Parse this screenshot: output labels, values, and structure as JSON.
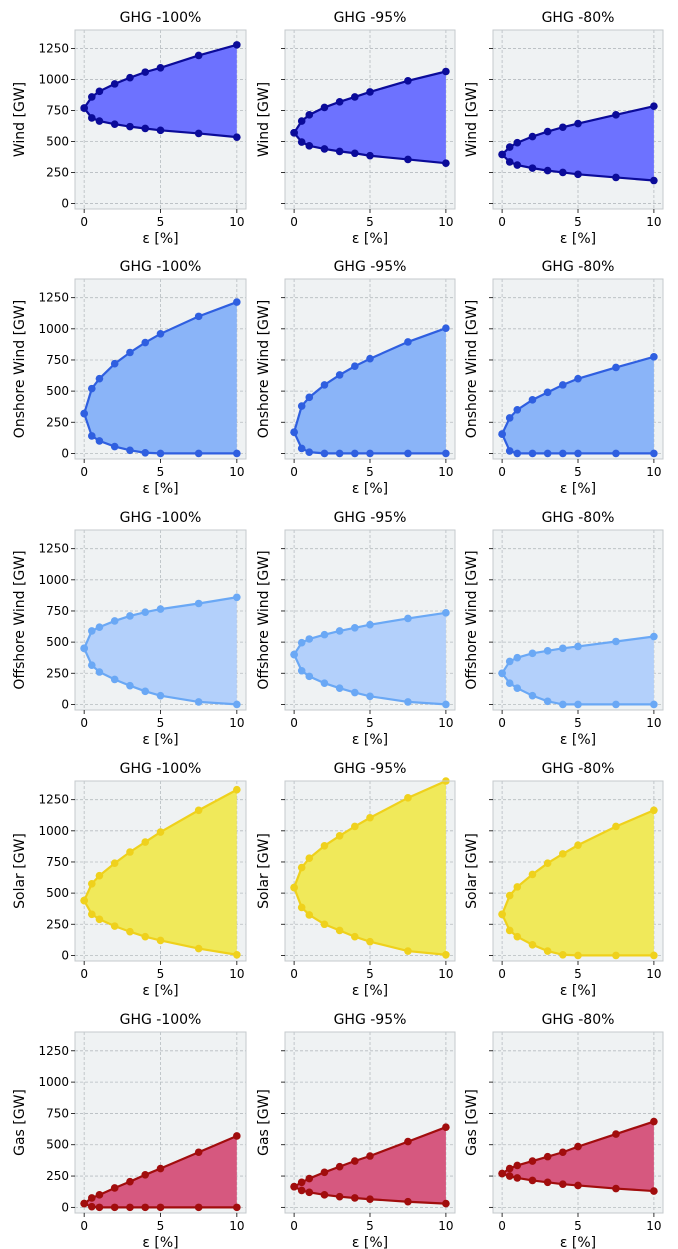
{
  "figure": {
    "colors": {
      "panel_bg": "#eff2f3",
      "grid": "#b6bcc0",
      "spine": "#c4cacd"
    }
  },
  "chart_data": [
    {
      "type": "area",
      "title": "GHG -100%",
      "ylabel": "Wind [GW]",
      "xlabel": "ε [%]",
      "xlim": [
        -0.6,
        10.6
      ],
      "ylim": [
        -45,
        1400
      ],
      "xticks": [
        0,
        5,
        10
      ],
      "yticks": [
        0,
        250,
        500,
        750,
        1000,
        1250
      ],
      "show_ytick_labels": true,
      "grid": true,
      "line_color": "#0b0b99",
      "fill_color": "#6d72ff",
      "x": [
        0,
        0.5,
        1,
        2,
        3,
        4,
        5,
        7.5,
        10
      ],
      "upper": [
        770,
        860,
        905,
        965,
        1015,
        1060,
        1095,
        1195,
        1280
      ],
      "lower": [
        770,
        690,
        665,
        640,
        620,
        605,
        590,
        565,
        535
      ]
    },
    {
      "type": "area",
      "title": "GHG -95%",
      "ylabel": "Wind [GW]",
      "xlabel": "ε [%]",
      "xlim": [
        -0.6,
        10.6
      ],
      "ylim": [
        -45,
        1400
      ],
      "xticks": [
        0,
        5,
        10
      ],
      "yticks": [
        0,
        250,
        500,
        750,
        1000,
        1250
      ],
      "show_ytick_labels": false,
      "grid": true,
      "line_color": "#0b0b99",
      "fill_color": "#6d72ff",
      "x": [
        0,
        0.5,
        1,
        2,
        3,
        4,
        5,
        7.5,
        10
      ],
      "upper": [
        570,
        665,
        715,
        775,
        820,
        860,
        900,
        990,
        1065
      ],
      "lower": [
        570,
        495,
        465,
        440,
        420,
        405,
        385,
        355,
        325
      ]
    },
    {
      "type": "area",
      "title": "GHG -80%",
      "ylabel": "Wind [GW]",
      "xlabel": "ε [%]",
      "xlim": [
        -0.6,
        10.6
      ],
      "ylim": [
        -45,
        1400
      ],
      "xticks": [
        0,
        5,
        10
      ],
      "yticks": [
        0,
        250,
        500,
        750,
        1000,
        1250
      ],
      "show_ytick_labels": false,
      "grid": true,
      "line_color": "#0b0b99",
      "fill_color": "#6d72ff",
      "x": [
        0,
        0.5,
        1,
        2,
        3,
        4,
        5,
        7.5,
        10
      ],
      "upper": [
        395,
        455,
        490,
        540,
        580,
        615,
        645,
        715,
        785
      ],
      "lower": [
        395,
        335,
        310,
        285,
        265,
        250,
        235,
        210,
        185
      ]
    },
    {
      "type": "area",
      "title": "GHG -100%",
      "ylabel": "Onshore Wind [GW]",
      "xlabel": "ε [%]",
      "xlim": [
        -0.6,
        10.6
      ],
      "ylim": [
        -45,
        1400
      ],
      "xticks": [
        0,
        5,
        10
      ],
      "yticks": [
        0,
        250,
        500,
        750,
        1000,
        1250
      ],
      "show_ytick_labels": true,
      "grid": true,
      "line_color": "#2f5fe0",
      "fill_color": "#8ab4f8",
      "x": [
        0,
        0.5,
        1,
        2,
        3,
        4,
        5,
        7.5,
        10
      ],
      "upper": [
        320,
        520,
        600,
        720,
        810,
        890,
        960,
        1100,
        1215
      ],
      "lower": [
        320,
        140,
        100,
        55,
        25,
        5,
        0,
        0,
        0
      ]
    },
    {
      "type": "area",
      "title": "GHG -95%",
      "ylabel": "Onshore Wind [GW]",
      "xlabel": "ε [%]",
      "xlim": [
        -0.6,
        10.6
      ],
      "ylim": [
        -45,
        1400
      ],
      "xticks": [
        0,
        5,
        10
      ],
      "yticks": [
        0,
        250,
        500,
        750,
        1000,
        1250
      ],
      "show_ytick_labels": false,
      "grid": true,
      "line_color": "#2f5fe0",
      "fill_color": "#8ab4f8",
      "x": [
        0,
        0.5,
        1,
        2,
        3,
        4,
        5,
        7.5,
        10
      ],
      "upper": [
        170,
        380,
        450,
        550,
        630,
        700,
        760,
        895,
        1005
      ],
      "lower": [
        170,
        40,
        10,
        0,
        0,
        0,
        0,
        0,
        0
      ]
    },
    {
      "type": "area",
      "title": "GHG -80%",
      "ylabel": "Onshore Wind [GW]",
      "xlabel": "ε [%]",
      "xlim": [
        -0.6,
        10.6
      ],
      "ylim": [
        -45,
        1400
      ],
      "xticks": [
        0,
        5,
        10
      ],
      "yticks": [
        0,
        250,
        500,
        750,
        1000,
        1250
      ],
      "show_ytick_labels": false,
      "grid": true,
      "line_color": "#2f5fe0",
      "fill_color": "#8ab4f8",
      "x": [
        0,
        0.5,
        1,
        2,
        3,
        4,
        5,
        7.5,
        10
      ],
      "upper": [
        155,
        285,
        350,
        430,
        490,
        550,
        600,
        690,
        775
      ],
      "lower": [
        155,
        20,
        0,
        0,
        0,
        0,
        0,
        0,
        0
      ]
    },
    {
      "type": "area",
      "title": "GHG -100%",
      "ylabel": "Offshore Wind [GW]",
      "xlabel": "ε [%]",
      "xlim": [
        -0.6,
        10.6
      ],
      "ylim": [
        -45,
        1400
      ],
      "xticks": [
        0,
        5,
        10
      ],
      "yticks": [
        0,
        250,
        500,
        750,
        1000,
        1250
      ],
      "show_ytick_labels": true,
      "grid": true,
      "line_color": "#6aa8f5",
      "fill_color": "#b3d0fb",
      "x": [
        0,
        0.5,
        1,
        2,
        3,
        4,
        5,
        7.5,
        10
      ],
      "upper": [
        450,
        590,
        620,
        670,
        710,
        740,
        765,
        810,
        860
      ],
      "lower": [
        450,
        315,
        260,
        200,
        150,
        105,
        70,
        20,
        0
      ]
    },
    {
      "type": "area",
      "title": "GHG -95%",
      "ylabel": "Offshore Wind [GW]",
      "xlabel": "ε [%]",
      "xlim": [
        -0.6,
        10.6
      ],
      "ylim": [
        -45,
        1400
      ],
      "xticks": [
        0,
        5,
        10
      ],
      "yticks": [
        0,
        250,
        500,
        750,
        1000,
        1250
      ],
      "show_ytick_labels": false,
      "grid": true,
      "line_color": "#6aa8f5",
      "fill_color": "#b3d0fb",
      "x": [
        0,
        0.5,
        1,
        2,
        3,
        4,
        5,
        7.5,
        10
      ],
      "upper": [
        400,
        495,
        525,
        560,
        590,
        615,
        640,
        690,
        735
      ],
      "lower": [
        400,
        270,
        225,
        170,
        130,
        95,
        65,
        20,
        0
      ]
    },
    {
      "type": "area",
      "title": "GHG -80%",
      "ylabel": "Offshore Wind [GW]",
      "xlabel": "ε [%]",
      "xlim": [
        -0.6,
        10.6
      ],
      "ylim": [
        -45,
        1400
      ],
      "xticks": [
        0,
        5,
        10
      ],
      "yticks": [
        0,
        250,
        500,
        750,
        1000,
        1250
      ],
      "show_ytick_labels": false,
      "grid": true,
      "line_color": "#6aa8f5",
      "fill_color": "#b3d0fb",
      "x": [
        0,
        0.5,
        1,
        2,
        3,
        4,
        5,
        7.5,
        10
      ],
      "upper": [
        250,
        345,
        375,
        410,
        430,
        450,
        465,
        505,
        545
      ],
      "lower": [
        250,
        170,
        130,
        70,
        25,
        0,
        0,
        0,
        0
      ]
    },
    {
      "type": "area",
      "title": "GHG -100%",
      "ylabel": "Solar [GW]",
      "xlabel": "ε [%]",
      "xlim": [
        -0.6,
        10.6
      ],
      "ylim": [
        -45,
        1400
      ],
      "xticks": [
        0,
        5,
        10
      ],
      "yticks": [
        0,
        250,
        500,
        750,
        1000,
        1250
      ],
      "show_ytick_labels": true,
      "grid": true,
      "line_color": "#efd11c",
      "fill_color": "#f0e95a",
      "x": [
        0,
        0.5,
        1,
        2,
        3,
        4,
        5,
        7.5,
        10
      ],
      "upper": [
        440,
        575,
        640,
        740,
        830,
        910,
        990,
        1165,
        1330
      ],
      "lower": [
        440,
        330,
        290,
        235,
        190,
        150,
        120,
        55,
        5
      ]
    },
    {
      "type": "area",
      "title": "GHG -95%",
      "ylabel": "Solar [GW]",
      "xlabel": "ε [%]",
      "xlim": [
        -0.6,
        10.6
      ],
      "ylim": [
        -45,
        1400
      ],
      "xticks": [
        0,
        5,
        10
      ],
      "yticks": [
        0,
        250,
        500,
        750,
        1000,
        1250
      ],
      "show_ytick_labels": false,
      "grid": true,
      "line_color": "#efd11c",
      "fill_color": "#f0e95a",
      "x": [
        0,
        0.5,
        1,
        2,
        3,
        4,
        5,
        7.5,
        10
      ],
      "upper": [
        545,
        705,
        780,
        880,
        960,
        1035,
        1105,
        1265,
        1400
      ],
      "lower": [
        545,
        385,
        325,
        250,
        200,
        150,
        110,
        35,
        5
      ]
    },
    {
      "type": "area",
      "title": "GHG -80%",
      "ylabel": "Solar [GW]",
      "xlabel": "ε [%]",
      "xlim": [
        -0.6,
        10.6
      ],
      "ylim": [
        -45,
        1400
      ],
      "xticks": [
        0,
        5,
        10
      ],
      "yticks": [
        0,
        250,
        500,
        750,
        1000,
        1250
      ],
      "show_ytick_labels": false,
      "grid": true,
      "line_color": "#efd11c",
      "fill_color": "#f0e95a",
      "x": [
        0,
        0.5,
        1,
        2,
        3,
        4,
        5,
        7.5,
        10
      ],
      "upper": [
        330,
        480,
        550,
        650,
        740,
        815,
        885,
        1035,
        1165
      ],
      "lower": [
        330,
        200,
        150,
        85,
        35,
        5,
        0,
        0,
        0
      ]
    },
    {
      "type": "area",
      "title": "GHG -100%",
      "ylabel": "Gas [GW]",
      "xlabel": "ε [%]",
      "xlim": [
        -0.6,
        10.6
      ],
      "ylim": [
        -45,
        1400
      ],
      "xticks": [
        0,
        5,
        10
      ],
      "yticks": [
        0,
        250,
        500,
        750,
        1000,
        1250
      ],
      "show_ytick_labels": true,
      "grid": true,
      "line_color": "#a10d0d",
      "fill_color": "#d6587f",
      "x": [
        0,
        0.5,
        1,
        2,
        3,
        4,
        5,
        7.5,
        10
      ],
      "upper": [
        30,
        75,
        100,
        155,
        205,
        260,
        310,
        440,
        570
      ],
      "lower": [
        30,
        5,
        0,
        0,
        0,
        0,
        0,
        0,
        0
      ]
    },
    {
      "type": "area",
      "title": "GHG -95%",
      "ylabel": "Gas [GW]",
      "xlabel": "ε [%]",
      "xlim": [
        -0.6,
        10.6
      ],
      "ylim": [
        -45,
        1400
      ],
      "xticks": [
        0,
        5,
        10
      ],
      "yticks": [
        0,
        250,
        500,
        750,
        1000,
        1250
      ],
      "show_ytick_labels": false,
      "grid": true,
      "line_color": "#a10d0d",
      "fill_color": "#d6587f",
      "x": [
        0,
        0.5,
        1,
        2,
        3,
        4,
        5,
        7.5,
        10
      ],
      "upper": [
        165,
        200,
        230,
        280,
        325,
        370,
        410,
        525,
        640
      ],
      "lower": [
        165,
        135,
        120,
        100,
        85,
        75,
        65,
        45,
        30
      ]
    },
    {
      "type": "area",
      "title": "GHG -80%",
      "ylabel": "Gas [GW]",
      "xlabel": "ε [%]",
      "xlim": [
        -0.6,
        10.6
      ],
      "ylim": [
        -45,
        1400
      ],
      "xticks": [
        0,
        5,
        10
      ],
      "yticks": [
        0,
        250,
        500,
        750,
        1000,
        1250
      ],
      "show_ytick_labels": false,
      "grid": true,
      "line_color": "#a10d0d",
      "fill_color": "#d6587f",
      "x": [
        0,
        0.5,
        1,
        2,
        3,
        4,
        5,
        7.5,
        10
      ],
      "upper": [
        270,
        310,
        335,
        370,
        405,
        440,
        485,
        585,
        685
      ],
      "lower": [
        270,
        250,
        235,
        215,
        200,
        185,
        175,
        150,
        130
      ]
    }
  ]
}
